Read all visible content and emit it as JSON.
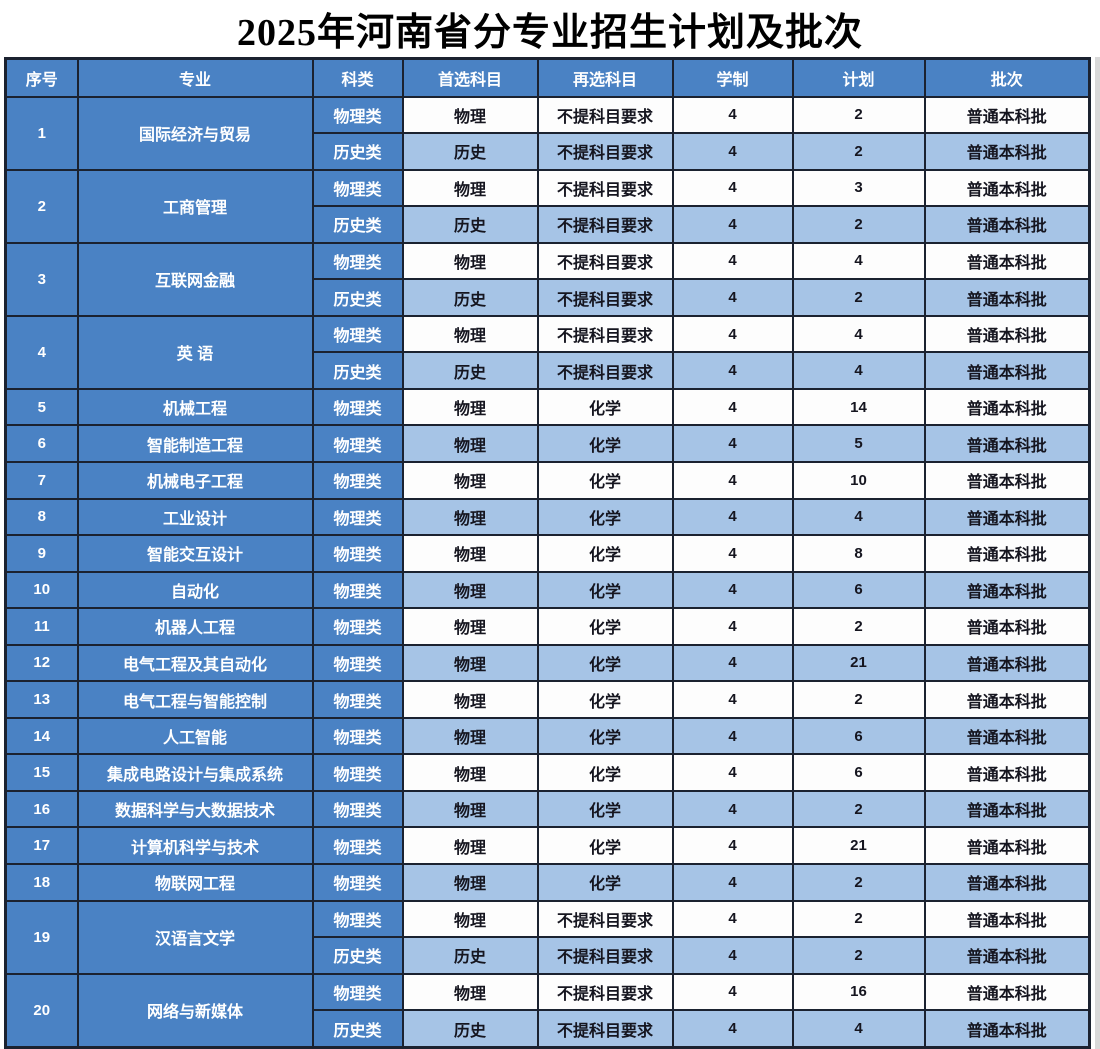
{
  "title": "2025年河南省分专业招生计划及批次",
  "colors": {
    "blue": "#4a82c4",
    "light_blue": "#a6c4e6",
    "border": "#1b2230",
    "ink": "#15151f"
  },
  "table": {
    "headers": [
      "序号",
      "专业",
      "科类",
      "首选科目",
      "再选科目",
      "学制",
      "计划",
      "批次"
    ],
    "rows": [
      {
        "no": "1",
        "major": "国际经济与贸易",
        "subrows": [
          {
            "category": "物理类",
            "first": "物理",
            "second": "不提科目要求",
            "years": "4",
            "plan": "2",
            "batch": "普通本科批"
          },
          {
            "category": "历史类",
            "first": "历史",
            "second": "不提科目要求",
            "years": "4",
            "plan": "2",
            "batch": "普通本科批"
          }
        ]
      },
      {
        "no": "2",
        "major": "工商管理",
        "subrows": [
          {
            "category": "物理类",
            "first": "物理",
            "second": "不提科目要求",
            "years": "4",
            "plan": "3",
            "batch": "普通本科批"
          },
          {
            "category": "历史类",
            "first": "历史",
            "second": "不提科目要求",
            "years": "4",
            "plan": "2",
            "batch": "普通本科批"
          }
        ]
      },
      {
        "no": "3",
        "major": "互联网金融",
        "subrows": [
          {
            "category": "物理类",
            "first": "物理",
            "second": "不提科目要求",
            "years": "4",
            "plan": "4",
            "batch": "普通本科批"
          },
          {
            "category": "历史类",
            "first": "历史",
            "second": "不提科目要求",
            "years": "4",
            "plan": "2",
            "batch": "普通本科批"
          }
        ]
      },
      {
        "no": "4",
        "major": "英  语",
        "subrows": [
          {
            "category": "物理类",
            "first": "物理",
            "second": "不提科目要求",
            "years": "4",
            "plan": "4",
            "batch": "普通本科批"
          },
          {
            "category": "历史类",
            "first": "历史",
            "second": "不提科目要求",
            "years": "4",
            "plan": "4",
            "batch": "普通本科批"
          }
        ]
      },
      {
        "no": "5",
        "major": "机械工程",
        "subrows": [
          {
            "category": "物理类",
            "first": "物理",
            "second": "化学",
            "years": "4",
            "plan": "14",
            "batch": "普通本科批"
          }
        ]
      },
      {
        "no": "6",
        "major": "智能制造工程",
        "subrows": [
          {
            "category": "物理类",
            "first": "物理",
            "second": "化学",
            "years": "4",
            "plan": "5",
            "batch": "普通本科批"
          }
        ]
      },
      {
        "no": "7",
        "major": "机械电子工程",
        "subrows": [
          {
            "category": "物理类",
            "first": "物理",
            "second": "化学",
            "years": "4",
            "plan": "10",
            "batch": "普通本科批"
          }
        ]
      },
      {
        "no": "8",
        "major": "工业设计",
        "subrows": [
          {
            "category": "物理类",
            "first": "物理",
            "second": "化学",
            "years": "4",
            "plan": "4",
            "batch": "普通本科批"
          }
        ]
      },
      {
        "no": "9",
        "major": "智能交互设计",
        "subrows": [
          {
            "category": "物理类",
            "first": "物理",
            "second": "化学",
            "years": "4",
            "plan": "8",
            "batch": "普通本科批"
          }
        ]
      },
      {
        "no": "10",
        "major": "自动化",
        "subrows": [
          {
            "category": "物理类",
            "first": "物理",
            "second": "化学",
            "years": "4",
            "plan": "6",
            "batch": "普通本科批"
          }
        ]
      },
      {
        "no": "11",
        "major": "机器人工程",
        "subrows": [
          {
            "category": "物理类",
            "first": "物理",
            "second": "化学",
            "years": "4",
            "plan": "2",
            "batch": "普通本科批"
          }
        ]
      },
      {
        "no": "12",
        "major": "电气工程及其自动化",
        "subrows": [
          {
            "category": "物理类",
            "first": "物理",
            "second": "化学",
            "years": "4",
            "plan": "21",
            "batch": "普通本科批"
          }
        ]
      },
      {
        "no": "13",
        "major": "电气工程与智能控制",
        "subrows": [
          {
            "category": "物理类",
            "first": "物理",
            "second": "化学",
            "years": "4",
            "plan": "2",
            "batch": "普通本科批"
          }
        ]
      },
      {
        "no": "14",
        "major": "人工智能",
        "subrows": [
          {
            "category": "物理类",
            "first": "物理",
            "second": "化学",
            "years": "4",
            "plan": "6",
            "batch": "普通本科批"
          }
        ]
      },
      {
        "no": "15",
        "major": "集成电路设计与集成系统",
        "subrows": [
          {
            "category": "物理类",
            "first": "物理",
            "second": "化学",
            "years": "4",
            "plan": "6",
            "batch": "普通本科批"
          }
        ]
      },
      {
        "no": "16",
        "major": "数据科学与大数据技术",
        "subrows": [
          {
            "category": "物理类",
            "first": "物理",
            "second": "化学",
            "years": "4",
            "plan": "2",
            "batch": "普通本科批"
          }
        ]
      },
      {
        "no": "17",
        "major": "计算机科学与技术",
        "subrows": [
          {
            "category": "物理类",
            "first": "物理",
            "second": "化学",
            "years": "4",
            "plan": "21",
            "batch": "普通本科批"
          }
        ]
      },
      {
        "no": "18",
        "major": "物联网工程",
        "subrows": [
          {
            "category": "物理类",
            "first": "物理",
            "second": "化学",
            "years": "4",
            "plan": "2",
            "batch": "普通本科批"
          }
        ]
      },
      {
        "no": "19",
        "major": "汉语言文学",
        "subrows": [
          {
            "category": "物理类",
            "first": "物理",
            "second": "不提科目要求",
            "years": "4",
            "plan": "2",
            "batch": "普通本科批"
          },
          {
            "category": "历史类",
            "first": "历史",
            "second": "不提科目要求",
            "years": "4",
            "plan": "2",
            "batch": "普通本科批"
          }
        ]
      },
      {
        "no": "20",
        "major": "网络与新媒体",
        "subrows": [
          {
            "category": "物理类",
            "first": "物理",
            "second": "不提科目要求",
            "years": "4",
            "plan": "16",
            "batch": "普通本科批"
          },
          {
            "category": "历史类",
            "first": "历史",
            "second": "不提科目要求",
            "years": "4",
            "plan": "4",
            "batch": "普通本科批"
          }
        ]
      }
    ]
  }
}
